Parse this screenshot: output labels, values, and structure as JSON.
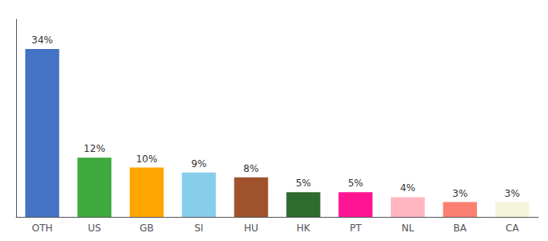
{
  "chart_data": {
    "type": "bar",
    "categories": [
      "OTH",
      "US",
      "GB",
      "SI",
      "HU",
      "HK",
      "PT",
      "NL",
      "BA",
      "CA"
    ],
    "values": [
      34,
      12,
      10,
      9,
      8,
      5,
      5,
      4,
      3,
      3
    ],
    "value_labels": [
      "34%",
      "12%",
      "10%",
      "9%",
      "8%",
      "5%",
      "5%",
      "4%",
      "3%",
      "3%"
    ],
    "colors": [
      "#4472C4",
      "#3EAA3E",
      "#FFA500",
      "#87CEEB",
      "#A0522D",
      "#2E6B2E",
      "#FF1493",
      "#FFB6C1",
      "#FA8072",
      "#F5F5DC"
    ],
    "ylim": [
      0,
      40
    ],
    "grid": false,
    "data_labels": true,
    "tick_labels": "x"
  }
}
